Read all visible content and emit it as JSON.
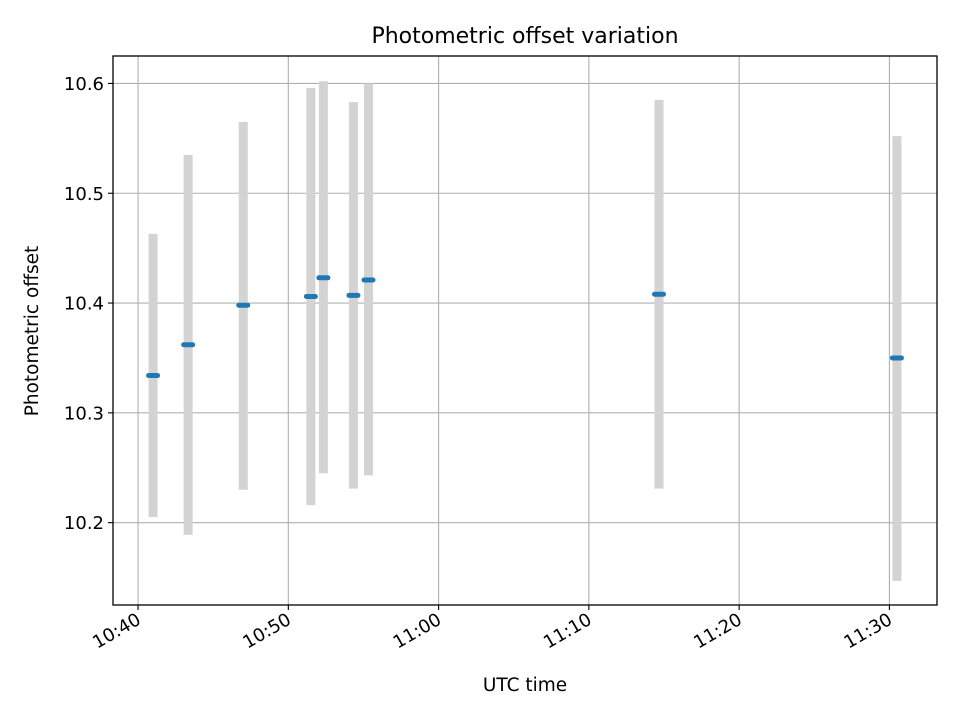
{
  "chart_data": {
    "type": "scatter",
    "title": "Photometric offset variation",
    "xlabel": "UTC time",
    "ylabel": "Photometric offset",
    "x_ticks": [
      "10:40",
      "10:50",
      "11:00",
      "11:10",
      "11:20",
      "11:30"
    ],
    "y_ticks": [
      "10.2",
      "10.3",
      "10.4",
      "10.5",
      "10.6"
    ],
    "xlim": [
      "10:38:20",
      "11:33:10"
    ],
    "ylim": [
      10.125,
      10.625
    ],
    "grid": true,
    "points": [
      {
        "time": "10:41:00",
        "value": 10.334,
        "err_low": 10.205,
        "err_high": 10.463
      },
      {
        "time": "10:43:20",
        "value": 10.362,
        "err_low": 10.189,
        "err_high": 10.535
      },
      {
        "time": "10:47:00",
        "value": 10.398,
        "err_low": 10.23,
        "err_high": 10.565
      },
      {
        "time": "10:51:30",
        "value": 10.406,
        "err_low": 10.216,
        "err_high": 10.596
      },
      {
        "time": "10:52:20",
        "value": 10.423,
        "err_low": 10.245,
        "err_high": 10.602
      },
      {
        "time": "10:54:20",
        "value": 10.407,
        "err_low": 10.231,
        "err_high": 10.583
      },
      {
        "time": "10:55:20",
        "value": 10.421,
        "err_low": 10.243,
        "err_high": 10.6
      },
      {
        "time": "11:14:40",
        "value": 10.408,
        "err_low": 10.231,
        "err_high": 10.585
      },
      {
        "time": "11:30:30",
        "value": 10.35,
        "err_low": 10.147,
        "err_high": 10.552
      }
    ],
    "colors": {
      "marker": "#1f77b4",
      "errorbar": "#d3d3d3",
      "grid": "#b0b0b0",
      "axes": "#000000"
    }
  }
}
